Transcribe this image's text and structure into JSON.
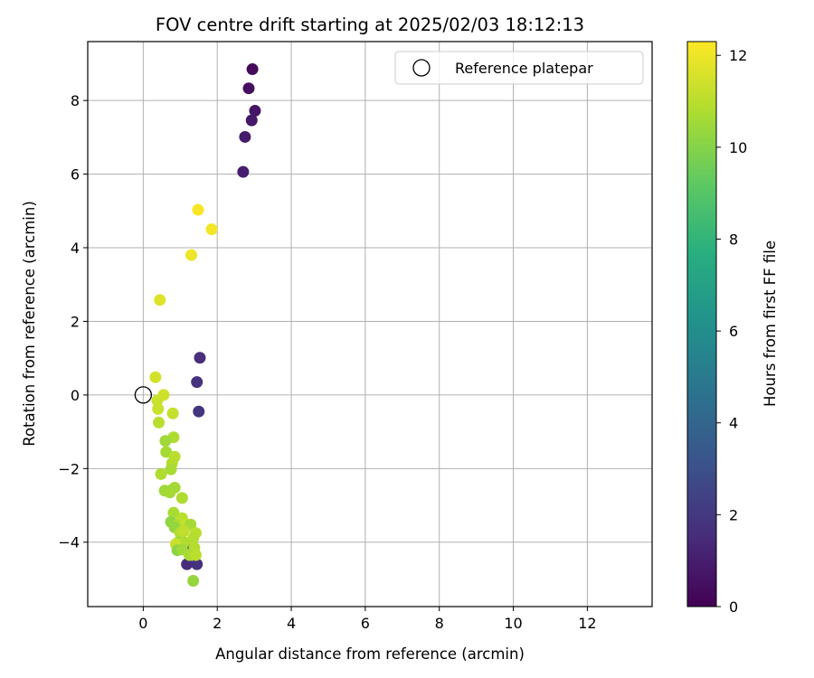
{
  "chart_data": {
    "type": "scatter",
    "title": "FOV centre drift starting at 2025/02/03 18:12:13",
    "xlabel": "Angular distance from reference (arcmin)",
    "ylabel": "Rotation from reference (arcmin)",
    "xlim": [
      -1.5,
      13.75
    ],
    "ylim": [
      -5.75,
      9.6
    ],
    "xticks": [
      0,
      2,
      4,
      6,
      8,
      10,
      12
    ],
    "yticks": [
      -4,
      -2,
      0,
      2,
      4,
      6,
      8
    ],
    "xtick_labels": [
      "0",
      "2",
      "4",
      "6",
      "8",
      "10",
      "12"
    ],
    "ytick_labels": [
      "−4",
      "−2",
      "0",
      "2",
      "4",
      "6",
      "8"
    ],
    "grid": true,
    "legend": {
      "position": "top-right",
      "entries": [
        "Reference platepar"
      ]
    },
    "reference_point": {
      "x": 0,
      "y": 0,
      "label": "Reference platepar"
    },
    "colorbar": {
      "label": "Hours from first FF file",
      "range": [
        0,
        12.3
      ],
      "ticks": [
        0,
        2,
        4,
        6,
        8,
        10,
        12
      ],
      "tick_labels": [
        "0",
        "2",
        "4",
        "6",
        "8",
        "10",
        "12"
      ],
      "colormap": "viridis"
    },
    "points": [
      {
        "x": 2.95,
        "y": 8.85,
        "hours": 0.3
      },
      {
        "x": 2.85,
        "y": 8.33,
        "hours": 0.5
      },
      {
        "x": 3.02,
        "y": 7.72,
        "hours": 0.7
      },
      {
        "x": 2.93,
        "y": 7.46,
        "hours": 0.8
      },
      {
        "x": 2.75,
        "y": 7.01,
        "hours": 0.9
      },
      {
        "x": 2.7,
        "y": 6.06,
        "hours": 1.0
      },
      {
        "x": 1.53,
        "y": 1.01,
        "hours": 1.6
      },
      {
        "x": 1.45,
        "y": 0.35,
        "hours": 1.8
      },
      {
        "x": 1.5,
        "y": -0.45,
        "hours": 1.9
      },
      {
        "x": 1.18,
        "y": -4.6,
        "hours": 1.5
      },
      {
        "x": 1.45,
        "y": -4.6,
        "hours": 1.7
      },
      {
        "x": 1.25,
        "y": -4.2,
        "hours": 1.3
      },
      {
        "x": 1.48,
        "y": 5.03,
        "hours": 12.2
      },
      {
        "x": 1.85,
        "y": 4.5,
        "hours": 12.1
      },
      {
        "x": 1.3,
        "y": 3.8,
        "hours": 12.0
      },
      {
        "x": 0.45,
        "y": 2.58,
        "hours": 11.7
      },
      {
        "x": 0.33,
        "y": 0.48,
        "hours": 11.5
      },
      {
        "x": 0.55,
        "y": 0.0,
        "hours": 11.4
      },
      {
        "x": 0.38,
        "y": -0.15,
        "hours": 11.3
      },
      {
        "x": 0.4,
        "y": -0.38,
        "hours": 11.3
      },
      {
        "x": 0.8,
        "y": -0.5,
        "hours": 11.2
      },
      {
        "x": 0.42,
        "y": -0.75,
        "hours": 11.0
      },
      {
        "x": 0.82,
        "y": -1.15,
        "hours": 10.8
      },
      {
        "x": 0.6,
        "y": -1.25,
        "hours": 10.5
      },
      {
        "x": 0.62,
        "y": -1.55,
        "hours": 10.6
      },
      {
        "x": 0.85,
        "y": -1.68,
        "hours": 11.0
      },
      {
        "x": 0.78,
        "y": -1.85,
        "hours": 10.9
      },
      {
        "x": 0.75,
        "y": -2.02,
        "hours": 10.7
      },
      {
        "x": 0.48,
        "y": -2.15,
        "hours": 10.8
      },
      {
        "x": 0.85,
        "y": -2.52,
        "hours": 10.6
      },
      {
        "x": 0.58,
        "y": -2.6,
        "hours": 10.5
      },
      {
        "x": 0.72,
        "y": -2.6,
        "hours": 10.4
      },
      {
        "x": 0.72,
        "y": -2.65,
        "hours": 10.6
      },
      {
        "x": 1.05,
        "y": -2.8,
        "hours": 10.8
      },
      {
        "x": 0.82,
        "y": -3.2,
        "hours": 10.7
      },
      {
        "x": 0.75,
        "y": -3.45,
        "hours": 10.2
      },
      {
        "x": 1.05,
        "y": -3.35,
        "hours": 11.0
      },
      {
        "x": 0.92,
        "y": -3.55,
        "hours": 10.8
      },
      {
        "x": 0.85,
        "y": -3.6,
        "hours": 10.3
      },
      {
        "x": 1.15,
        "y": -3.52,
        "hours": 11.2
      },
      {
        "x": 1.28,
        "y": -3.52,
        "hours": 10.6
      },
      {
        "x": 1.0,
        "y": -3.75,
        "hours": 10.9
      },
      {
        "x": 1.1,
        "y": -3.7,
        "hours": 11.1
      },
      {
        "x": 1.42,
        "y": -3.75,
        "hours": 11.0
      },
      {
        "x": 1.35,
        "y": -3.9,
        "hours": 10.9
      },
      {
        "x": 0.95,
        "y": -4.0,
        "hours": 10.4
      },
      {
        "x": 1.1,
        "y": -4.0,
        "hours": 10.8
      },
      {
        "x": 0.88,
        "y": -4.05,
        "hours": 11.3
      },
      {
        "x": 0.92,
        "y": -4.22,
        "hours": 10.1
      },
      {
        "x": 1.05,
        "y": -4.2,
        "hours": 10.5
      },
      {
        "x": 1.38,
        "y": -4.15,
        "hours": 10.9
      },
      {
        "x": 1.25,
        "y": -4.35,
        "hours": 10.7
      },
      {
        "x": 1.42,
        "y": -4.35,
        "hours": 11.0
      },
      {
        "x": 1.35,
        "y": -5.05,
        "hours": 10.3
      }
    ]
  }
}
